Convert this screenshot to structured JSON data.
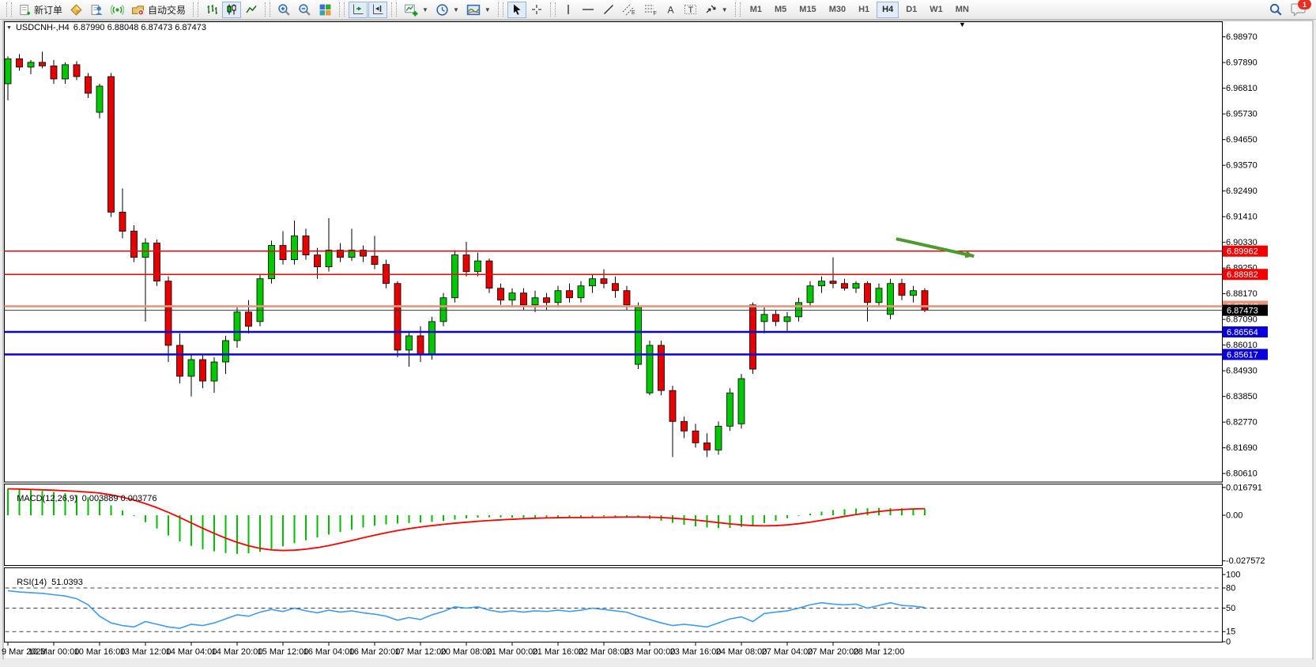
{
  "toolbar": {
    "new_order_label": "新订单",
    "autotrading_label": "自动交易",
    "timeframes": [
      "M1",
      "M5",
      "M15",
      "M30",
      "H1",
      "H4",
      "D1",
      "W1",
      "MN"
    ],
    "active_timeframe": "H4",
    "notification_badge": "1"
  },
  "chart_header": {
    "symbol_period": "USDCNH-,H4",
    "quote": "6.87990 6.88048 6.87473 6.87473"
  },
  "indicators": {
    "macd": {
      "label": "MACD(12,26,9)",
      "values": "0.003889 0.003776"
    },
    "rsi": {
      "label": "RSI(14)",
      "value": "51.0393"
    }
  },
  "chart_data": {
    "type": "candlestick",
    "symbol": "USDCNH-",
    "timeframe": "H4",
    "ylim": [
      6.8025,
      6.9959
    ],
    "colors": {
      "bull": "#00C800",
      "bear": "#E60000",
      "wick": "#000000",
      "macd_hist": "#00BE00",
      "macd_signal": "#FF0000",
      "rsi_line": "#3E9BEF"
    },
    "price_ticks": [
      "6.98970",
      "6.97890",
      "6.96810",
      "6.95730",
      "6.94650",
      "6.93570",
      "6.92490",
      "6.91410",
      "6.90330",
      "6.89250",
      "6.88170",
      "6.87090",
      "6.86010",
      "6.84930",
      "6.83850",
      "6.82770",
      "6.81690",
      "6.80610"
    ],
    "hlines": [
      {
        "label": "6.89962",
        "price": 6.89962,
        "color": "#F50000",
        "width": 1.5,
        "badge_bg": "#F50000",
        "badge_fg": "#FFFFFF"
      },
      {
        "label": "6.88982",
        "price": 6.88982,
        "color": "#F50000",
        "width": 1.5,
        "badge_bg": "#F50000",
        "badge_fg": "#FFFFFF"
      },
      {
        "label": "6.87643",
        "price": 6.87643,
        "color": "#E89580",
        "width": 2.6,
        "badge_bg": "#E89580",
        "badge_fg": "#FFFFFF"
      },
      {
        "label": "6.87473",
        "price": 6.87473,
        "color": "#3a3a3a",
        "width": 1.0,
        "badge_bg": "#000000",
        "badge_fg": "#FFFFFF"
      },
      {
        "label": "6.86564",
        "price": 6.86564,
        "color": "#0A00DC",
        "width": 2.6,
        "badge_bg": "#0A00DC",
        "badge_fg": "#FFFFFF"
      },
      {
        "label": "6.85617",
        "price": 6.85617,
        "color": "#0A00DC",
        "width": 2.6,
        "badge_bg": "#0A00DC",
        "badge_fg": "#FFFFFF"
      }
    ],
    "arrow_annotation": {
      "bar1": 77.5,
      "price1": 6.9048,
      "bar2": 84.3,
      "price2": 6.8975,
      "color": "#4E9A2E"
    },
    "candles": [
      [
        6.97,
        6.9815,
        6.963,
        6.9805
      ],
      [
        6.9805,
        6.9825,
        6.9755,
        6.977
      ],
      [
        6.977,
        6.98,
        6.974,
        6.979
      ],
      [
        6.979,
        6.9835,
        6.9765,
        6.9775
      ],
      [
        6.9775,
        6.98,
        6.97,
        6.972
      ],
      [
        6.972,
        6.979,
        6.97,
        6.978
      ],
      [
        6.978,
        6.9795,
        6.9715,
        6.973
      ],
      [
        6.973,
        6.9745,
        6.964,
        6.966
      ],
      [
        6.958,
        6.97,
        6.9555,
        6.969
      ],
      [
        6.973,
        6.9745,
        6.914,
        6.916
      ],
      [
        6.916,
        6.926,
        6.905,
        6.908
      ],
      [
        6.908,
        6.9105,
        6.895,
        6.897
      ],
      [
        6.897,
        6.905,
        6.87,
        6.903
      ],
      [
        6.903,
        6.9045,
        6.885,
        6.887
      ],
      [
        6.887,
        6.889,
        6.853,
        6.86
      ],
      [
        6.86,
        6.865,
        6.844,
        6.847
      ],
      [
        6.847,
        6.856,
        6.8385,
        6.854
      ],
      [
        6.854,
        6.856,
        6.842,
        6.845
      ],
      [
        6.845,
        6.855,
        6.84,
        6.853
      ],
      [
        6.853,
        6.864,
        6.848,
        6.862
      ],
      [
        6.862,
        6.876,
        6.859,
        6.874
      ],
      [
        6.874,
        6.879,
        6.865,
        6.868
      ],
      [
        6.87,
        6.89,
        6.868,
        6.888
      ],
      [
        6.888,
        6.904,
        6.886,
        6.902
      ],
      [
        6.902,
        6.908,
        6.894,
        6.896
      ],
      [
        6.896,
        6.9125,
        6.894,
        6.906
      ],
      [
        6.906,
        6.909,
        6.896,
        6.898
      ],
      [
        6.898,
        6.901,
        6.888,
        6.893
      ],
      [
        6.893,
        6.9135,
        6.891,
        6.9
      ],
      [
        6.9,
        6.903,
        6.895,
        6.897
      ],
      [
        6.897,
        6.909,
        6.8955,
        6.9
      ],
      [
        6.9,
        6.902,
        6.895,
        6.8975
      ],
      [
        6.8975,
        6.906,
        6.892,
        6.894
      ],
      [
        6.894,
        6.896,
        6.884,
        6.886
      ],
      [
        6.886,
        6.887,
        6.855,
        6.858
      ],
      [
        6.858,
        6.866,
        6.851,
        6.864
      ],
      [
        6.864,
        6.868,
        6.853,
        6.856
      ],
      [
        6.856,
        6.872,
        6.854,
        6.87
      ],
      [
        6.87,
        6.882,
        6.868,
        6.88
      ],
      [
        6.88,
        6.9,
        6.878,
        6.898
      ],
      [
        6.898,
        6.9035,
        6.889,
        6.891
      ],
      [
        6.891,
        6.899,
        6.889,
        6.8955
      ],
      [
        6.8955,
        6.8965,
        6.882,
        6.884
      ],
      [
        6.884,
        6.886,
        6.877,
        6.879
      ],
      [
        6.879,
        6.884,
        6.876,
        6.882
      ],
      [
        6.882,
        6.884,
        6.875,
        6.877
      ],
      [
        6.877,
        6.883,
        6.874,
        6.88
      ],
      [
        6.88,
        6.882,
        6.875,
        6.878
      ],
      [
        6.878,
        6.885,
        6.876,
        6.883
      ],
      [
        6.883,
        6.886,
        6.878,
        6.88
      ],
      [
        6.88,
        6.887,
        6.878,
        6.885
      ],
      [
        6.885,
        6.89,
        6.882,
        6.888
      ],
      [
        6.888,
        6.892,
        6.884,
        6.886
      ],
      [
        6.886,
        6.889,
        6.88,
        6.883
      ],
      [
        6.883,
        6.885,
        6.875,
        6.877
      ],
      [
        6.852,
        6.878,
        6.85,
        6.876
      ],
      [
        6.84,
        6.862,
        6.839,
        6.86
      ],
      [
        6.86,
        6.862,
        6.839,
        6.841
      ],
      [
        6.841,
        6.843,
        6.813,
        6.828
      ],
      [
        6.828,
        6.83,
        6.821,
        6.824
      ],
      [
        6.824,
        6.827,
        6.817,
        6.819
      ],
      [
        6.819,
        6.823,
        6.813,
        6.816
      ],
      [
        6.816,
        6.828,
        6.814,
        6.826
      ],
      [
        6.826,
        6.842,
        6.824,
        6.84
      ],
      [
        6.827,
        6.848,
        6.825,
        6.846
      ],
      [
        6.877,
        6.878,
        6.848,
        6.85
      ],
      [
        6.87,
        6.876,
        6.865,
        6.873
      ],
      [
        6.873,
        6.875,
        6.868,
        6.87
      ],
      [
        6.87,
        6.874,
        6.866,
        6.872
      ],
      [
        6.872,
        6.88,
        6.87,
        6.878
      ],
      [
        6.878,
        6.887,
        6.876,
        6.885
      ],
      [
        6.885,
        6.889,
        6.882,
        6.887
      ],
      [
        6.887,
        6.897,
        6.884,
        6.886
      ],
      [
        6.886,
        6.888,
        6.883,
        6.884
      ],
      [
        6.884,
        6.887,
        6.882,
        6.886
      ],
      [
        6.886,
        6.887,
        6.87,
        6.878
      ],
      [
        6.878,
        6.886,
        6.876,
        6.884
      ],
      [
        6.873,
        6.888,
        6.871,
        6.886
      ],
      [
        6.886,
        6.888,
        6.879,
        6.881
      ],
      [
        6.881,
        6.885,
        6.878,
        6.883
      ],
      [
        6.883,
        6.884,
        6.874,
        6.87473
      ]
    ],
    "time_labels": [
      {
        "label": "9 Mar 2023",
        "bar": 0
      },
      {
        "label": "10 Mar 00:00",
        "bar": 4
      },
      {
        "label": "10 Mar 16:00",
        "bar": 8
      },
      {
        "label": "13 Mar 12:00",
        "bar": 12
      },
      {
        "label": "14 Mar 04:00",
        "bar": 16
      },
      {
        "label": "14 Mar 20:00",
        "bar": 20
      },
      {
        "label": "15 Mar 12:00",
        "bar": 24
      },
      {
        "label": "16 Mar 04:00",
        "bar": 28
      },
      {
        "label": "16 Mar 20:00",
        "bar": 32
      },
      {
        "label": "17 Mar 12:00",
        "bar": 36
      },
      {
        "label": "20 Mar 08:00",
        "bar": 40
      },
      {
        "label": "21 Mar 00:00",
        "bar": 44
      },
      {
        "label": "21 Mar 16:00",
        "bar": 48
      },
      {
        "label": "22 Mar 08:00",
        "bar": 52
      },
      {
        "label": "23 Mar 00:00",
        "bar": 56
      },
      {
        "label": "23 Mar 16:00",
        "bar": 60
      },
      {
        "label": "24 Mar 08:00",
        "bar": 64
      },
      {
        "label": "27 Mar 04:00",
        "bar": 68
      },
      {
        "label": "27 Mar 20:00",
        "bar": 72
      },
      {
        "label": "28 Mar 12:00",
        "bar": 76
      }
    ],
    "macd": {
      "ylim": [
        -0.03056,
        0.0191
      ],
      "ticks": [
        {
          "label": "0.016791",
          "value": 0.016791
        },
        {
          "label": "0.00",
          "value": 0
        },
        {
          "label": "-0.027572",
          "value": -0.027572
        }
      ],
      "signal_sma_period": 9,
      "histogram": [
        0.016,
        0.0156,
        0.0152,
        0.0147,
        0.0141,
        0.0133,
        0.0122,
        0.0108,
        0.009,
        0.006,
        0.0028,
        -0.0005,
        -0.0042,
        -0.008,
        -0.0122,
        -0.0158,
        -0.0185,
        -0.0205,
        -0.0218,
        -0.0228,
        -0.0233,
        -0.023,
        -0.0221,
        -0.0206,
        -0.0188,
        -0.0169,
        -0.0151,
        -0.0134,
        -0.0117,
        -0.0101,
        -0.0087,
        -0.0074,
        -0.0063,
        -0.0055,
        -0.005,
        -0.0047,
        -0.0044,
        -0.004,
        -0.0034,
        -0.0026,
        -0.0019,
        -0.0014,
        -0.0012,
        -0.0013,
        -0.0015,
        -0.0016,
        -0.0015,
        -0.0014,
        -0.0013,
        -0.0012,
        -0.0011,
        -0.0009,
        -0.0007,
        -0.0007,
        -0.0009,
        -0.0014,
        -0.0022,
        -0.0033,
        -0.0046,
        -0.0057,
        -0.0067,
        -0.0074,
        -0.0078,
        -0.0076,
        -0.007,
        -0.006,
        -0.0047,
        -0.0033,
        -0.0018,
        -0.0004,
        0.001,
        0.0022,
        0.0031,
        0.0037,
        0.0041,
        0.0043,
        0.0044,
        0.0043,
        0.0042,
        0.004,
        0.0039
      ]
    },
    "rsi": {
      "ylim": [
        -1.18,
        110.59
      ],
      "ticks": [
        {
          "label": "100",
          "value": 100
        },
        {
          "label": "80",
          "value": 80
        },
        {
          "label": "50",
          "value": 50
        },
        {
          "label": "15",
          "value": 15
        },
        {
          "label": "0",
          "value": 0
        }
      ],
      "levels": [
        80,
        50,
        15
      ],
      "values": [
        76,
        74,
        73,
        72,
        70,
        68,
        64,
        55,
        38,
        28,
        24,
        22,
        30,
        26,
        22,
        20,
        26,
        24,
        28,
        34,
        40,
        38,
        44,
        48,
        45,
        50,
        46,
        43,
        47,
        44,
        46,
        43,
        41,
        38,
        32,
        36,
        33,
        40,
        45,
        52,
        50,
        52,
        47,
        44,
        46,
        44,
        46,
        45,
        47,
        45,
        47,
        50,
        48,
        46,
        44,
        38,
        33,
        28,
        24,
        26,
        24,
        22,
        28,
        34,
        37,
        30,
        42,
        44,
        46,
        50,
        55,
        58,
        56,
        55,
        56,
        50,
        54,
        58,
        54,
        53,
        51
      ]
    }
  }
}
